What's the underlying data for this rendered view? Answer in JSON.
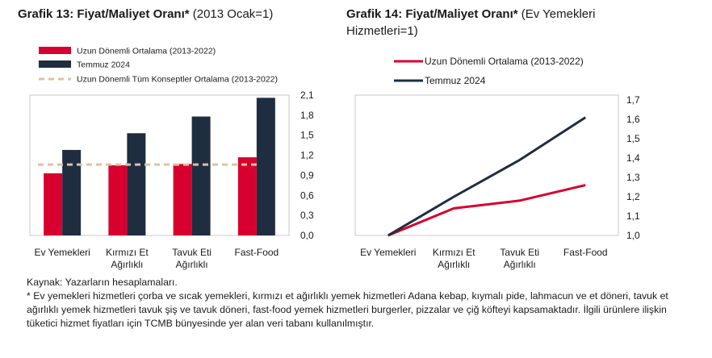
{
  "chart_data": [
    {
      "type": "bar",
      "title_bold": "Grafik 13: Fiyat/Maliyet Oranı*",
      "title_rest": "(2013 Ocak=1)",
      "categories": [
        [
          "Ev Yemekleri"
        ],
        [
          "Kırmızı Et",
          "Ağırlıklı"
        ],
        [
          "Tavuk Eti",
          "Ağırlıklı"
        ],
        [
          "Fast-Food"
        ]
      ],
      "series": [
        {
          "name": "Uzun Dönemli Ortalama (2013-2022)",
          "color": "#d7002e",
          "values": [
            0.93,
            1.05,
            1.07,
            1.17
          ]
        },
        {
          "name": "Temmuz 2024",
          "color": "#1f2d40",
          "values": [
            1.28,
            1.53,
            1.78,
            2.06
          ]
        }
      ],
      "reference_line": {
        "name": "Uzun Dönemli Tüm Konseptler Ortalama (2013-2022)",
        "value": 1.06,
        "color": "#dcc3a1"
      },
      "ylim": [
        0,
        2.1
      ],
      "yticks": [
        "0,0",
        "0,3",
        "0,6",
        "0,9",
        "1,2",
        "1,5",
        "1,8",
        "2,1"
      ],
      "ytick_values": [
        0,
        0.3,
        0.6,
        0.9,
        1.2,
        1.5,
        1.8,
        2.1
      ],
      "y_axis_side": "right",
      "grid": false,
      "legend_position": "top-left"
    },
    {
      "type": "line",
      "title_bold": "Grafik 14: Fiyat/Maliyet Oranı*",
      "title_rest_line1": "(Ev Yemekleri",
      "title_rest_line2": "Hizmetleri=1)",
      "categories": [
        [
          "Ev Yemekleri"
        ],
        [
          "Kırmızı Et",
          "Ağırlıklı"
        ],
        [
          "Tavuk Eti",
          "Ağırlıklı"
        ],
        [
          "Fast-Food"
        ]
      ],
      "series": [
        {
          "name": "Uzun Dönemli Ortalama (2013-2022)",
          "color": "#d7002e",
          "values": [
            1.0,
            1.14,
            1.18,
            1.26
          ]
        },
        {
          "name": "Temmuz 2024",
          "color": "#1f2d40",
          "values": [
            1.0,
            1.2,
            1.39,
            1.61
          ]
        }
      ],
      "ylim": [
        1.0,
        1.7
      ],
      "yticks": [
        "1,0",
        "1,1",
        "1,2",
        "1,3",
        "1,4",
        "1,5",
        "1,6",
        "1,7"
      ],
      "ytick_values": [
        1.0,
        1.1,
        1.2,
        1.3,
        1.4,
        1.5,
        1.6,
        1.7
      ],
      "y_axis_side": "right",
      "grid": false,
      "legend_position": "top-left"
    }
  ],
  "footer": {
    "source": "Kaynak: Yazarların hesaplamaları.",
    "note": "* Ev yemekleri hizmetleri çorba ve sıcak yemekleri, kırmızı et ağırlıklı yemek hizmetleri Adana kebap, kıymalı pide, lahmacun ve et döneri, tavuk et ağırlıklı yemek hizmetleri tavuk şiş ve tavuk döneri, fast-food yemek hizmetleri burgerler, pizzalar ve çiğ köfteyi kapsamaktadır. İlgili ürünlere ilişkin tüketici hizmet fiyatları için TCMB bünyesinde yer alan veri tabanı kullanılmıştır."
  }
}
